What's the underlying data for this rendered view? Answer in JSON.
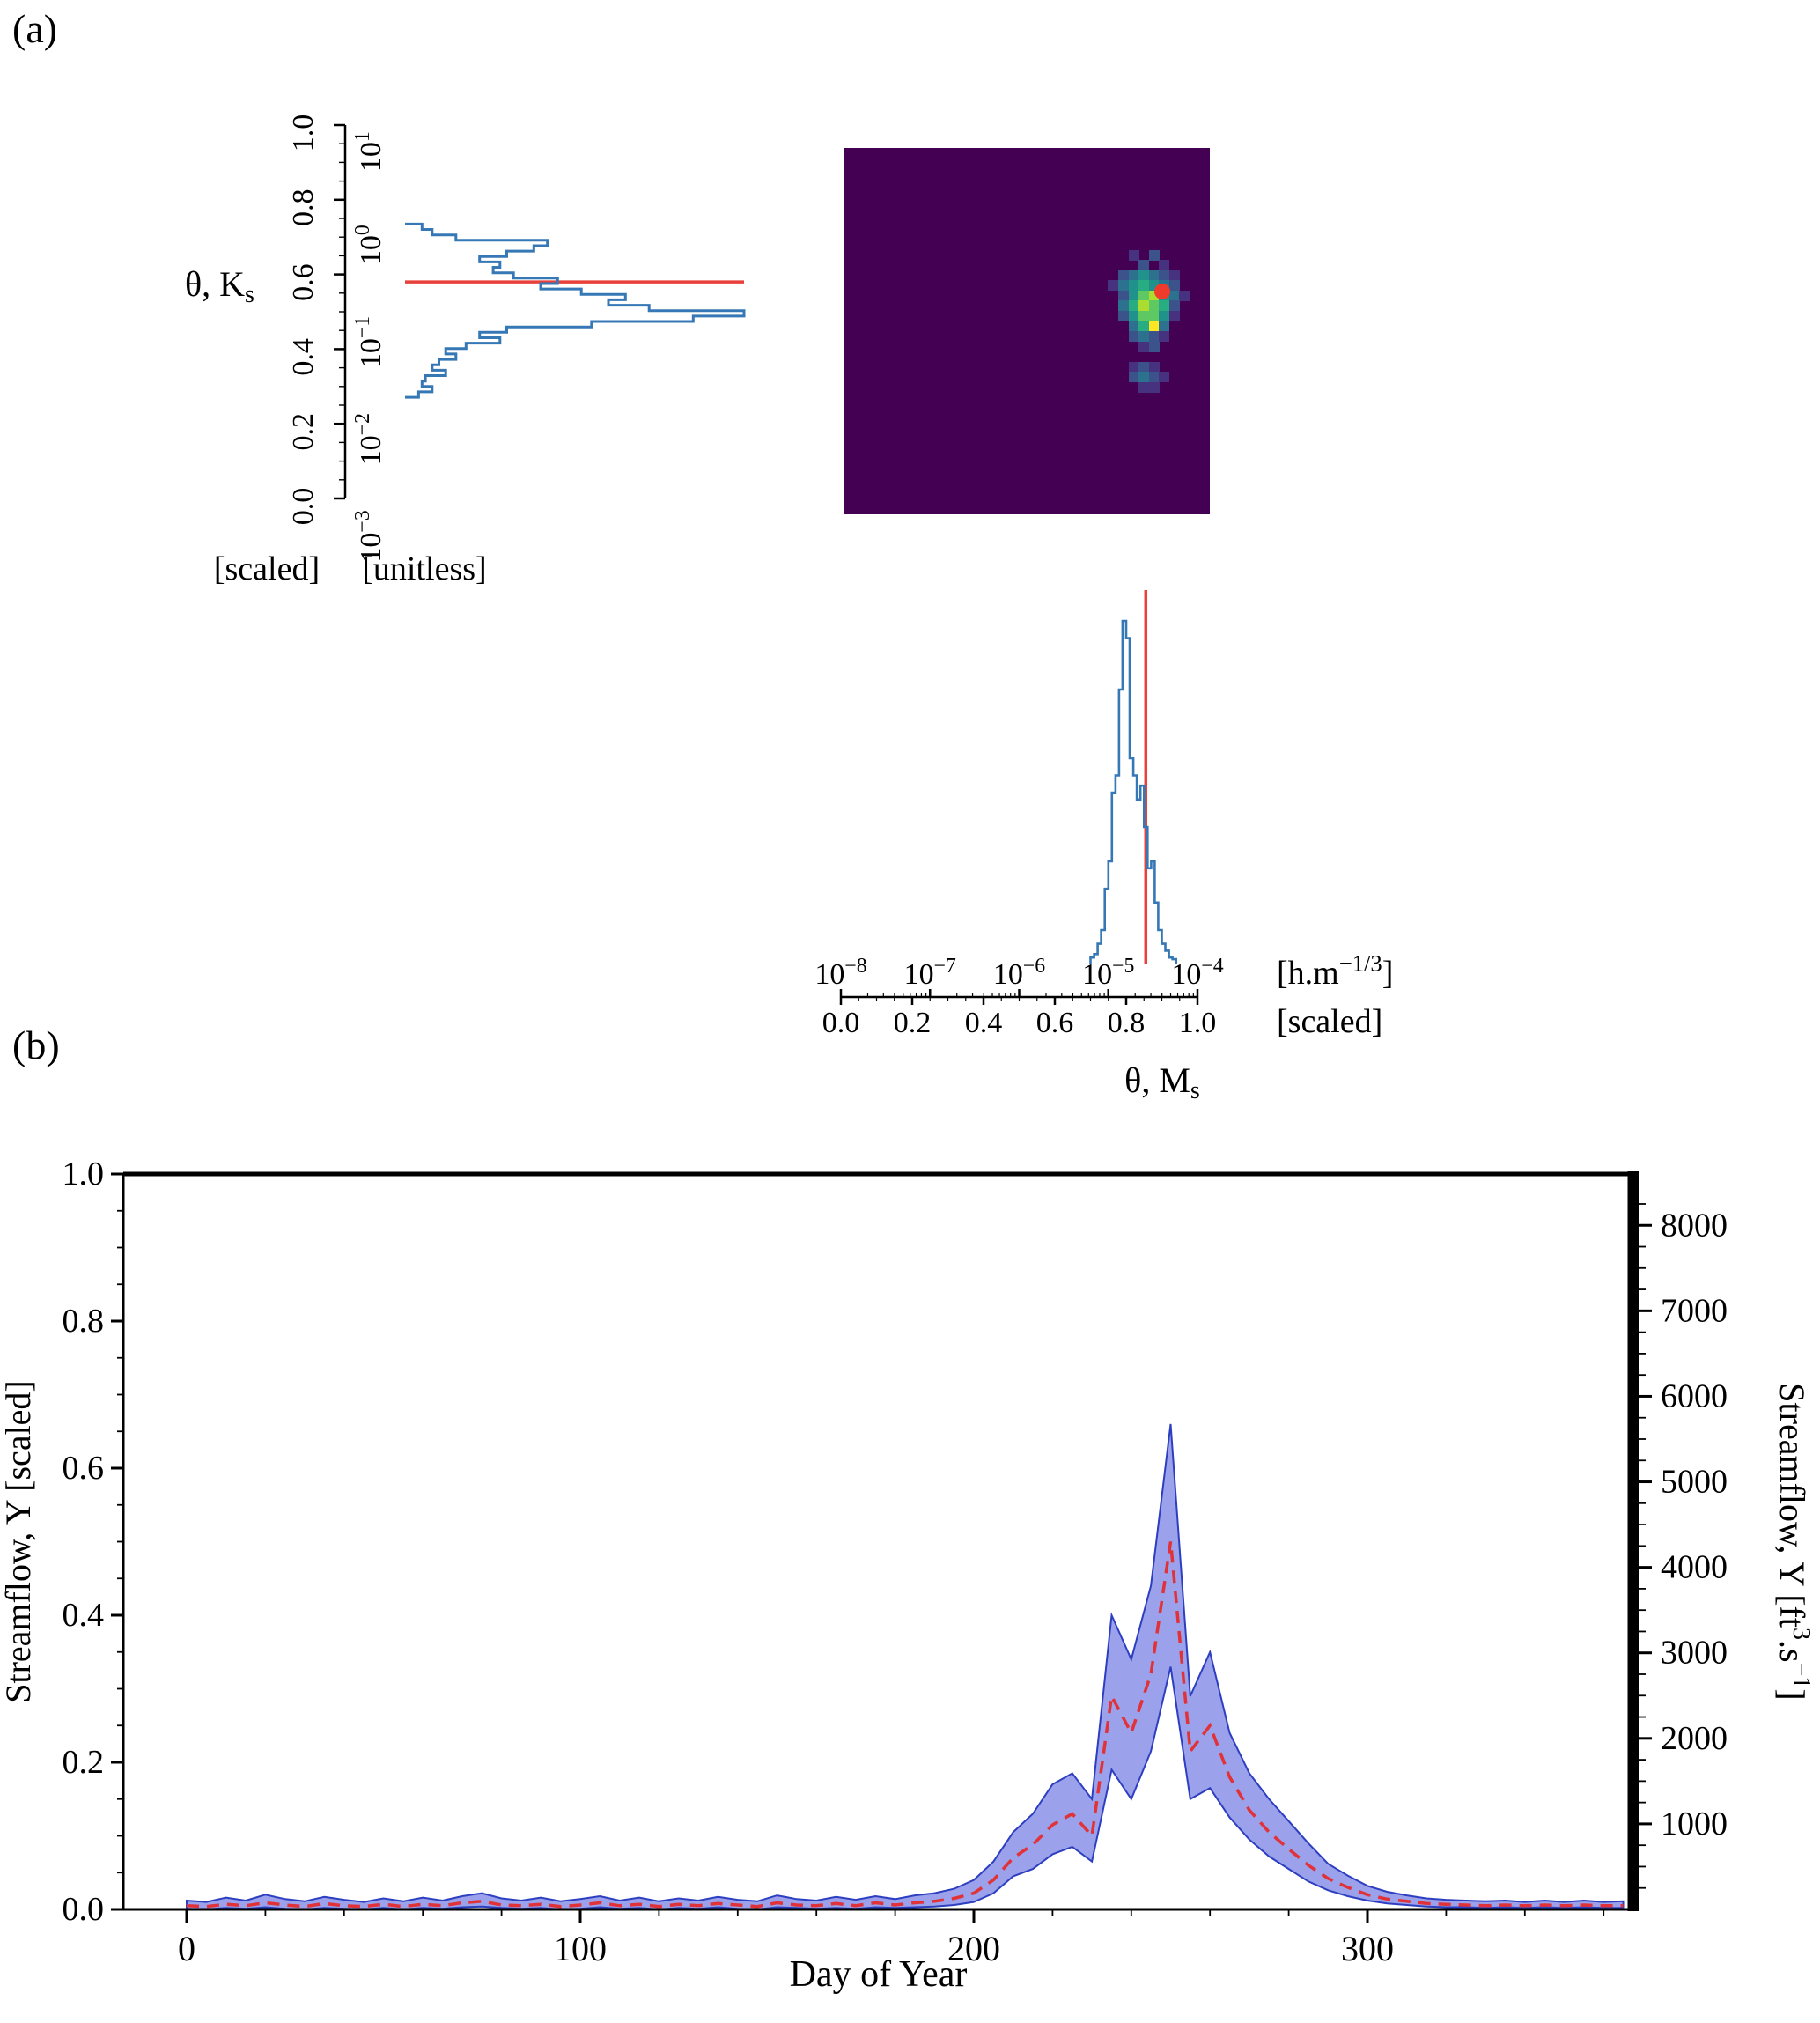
{
  "panels": {
    "a_label": "(a)",
    "b_label": "(b)"
  },
  "colors": {
    "hist_stroke": "#3578b5",
    "red_line": "#e8403a",
    "band_fill": "#8a90e6",
    "band_edge": "#2d3fc0",
    "median": "#e03238",
    "heatmap_bg": "#440154",
    "marker_red": "#ef3b2c",
    "axis_black": "#000000"
  },
  "chart_data": [
    {
      "id": "ks_marginal",
      "type": "bar",
      "orientation": "horizontal",
      "axis_label": "θ, K_{s}",
      "scaled_ticks": [
        "1.0",
        "0.8",
        "0.6",
        "0.4",
        "0.2",
        "0.0"
      ],
      "unitless_ticks": [
        "10^{1}",
        "10^{0}",
        "10^{−1}",
        "10^{−2}",
        "10^{−3}"
      ],
      "captions": [
        "[scaled]",
        "[unitless]"
      ],
      "bin_start": 0.735,
      "bin_step": 0.0145,
      "values": [
        0.05,
        0.08,
        0.15,
        0.42,
        0.38,
        0.3,
        0.22,
        0.28,
        0.26,
        0.32,
        0.45,
        0.4,
        0.52,
        0.65,
        0.6,
        0.72,
        1.0,
        0.85,
        0.55,
        0.3,
        0.22,
        0.28,
        0.18,
        0.12,
        0.15,
        0.1,
        0.08,
        0.12,
        0.06,
        0.05,
        0.08,
        0.04
      ],
      "red_line_value": 0.58,
      "axis_range_scaled": [
        0.0,
        1.0
      ]
    },
    {
      "id": "joint_heatmap",
      "type": "heatmap",
      "grid_size": 36,
      "background": "#440154",
      "palette": [
        "#46327e",
        "#3b528b",
        "#2c728e",
        "#21918c",
        "#27ad81",
        "#5ec962",
        "#addc30",
        "#fde725"
      ],
      "cells": [
        [
          28,
          10,
          0
        ],
        [
          30,
          10,
          1
        ],
        [
          29,
          11,
          1
        ],
        [
          31,
          11,
          0
        ],
        [
          27,
          12,
          1
        ],
        [
          28,
          12,
          2
        ],
        [
          29,
          12,
          3
        ],
        [
          30,
          12,
          2
        ],
        [
          31,
          12,
          1
        ],
        [
          32,
          12,
          0
        ],
        [
          26,
          13,
          0
        ],
        [
          27,
          13,
          2
        ],
        [
          28,
          13,
          3
        ],
        [
          29,
          13,
          4
        ],
        [
          30,
          13,
          3
        ],
        [
          31,
          13,
          2
        ],
        [
          32,
          13,
          1
        ],
        [
          27,
          14,
          1
        ],
        [
          28,
          14,
          3
        ],
        [
          29,
          14,
          5
        ],
        [
          30,
          14,
          6
        ],
        [
          31,
          14,
          3
        ],
        [
          32,
          14,
          2
        ],
        [
          33,
          14,
          0
        ],
        [
          27,
          15,
          2
        ],
        [
          28,
          15,
          4
        ],
        [
          29,
          15,
          6
        ],
        [
          30,
          15,
          5
        ],
        [
          31,
          15,
          4
        ],
        [
          32,
          15,
          1
        ],
        [
          27,
          16,
          1
        ],
        [
          28,
          16,
          3
        ],
        [
          29,
          16,
          5
        ],
        [
          30,
          16,
          5
        ],
        [
          31,
          16,
          3
        ],
        [
          32,
          16,
          0
        ],
        [
          28,
          17,
          2
        ],
        [
          29,
          17,
          4
        ],
        [
          30,
          17,
          7
        ],
        [
          31,
          17,
          2
        ],
        [
          28,
          18,
          1
        ],
        [
          29,
          18,
          2
        ],
        [
          30,
          18,
          1
        ],
        [
          31,
          18,
          0
        ],
        [
          29,
          19,
          0
        ],
        [
          30,
          19,
          1
        ],
        [
          28,
          21,
          0
        ],
        [
          29,
          21,
          1
        ],
        [
          30,
          21,
          0
        ],
        [
          28,
          22,
          1
        ],
        [
          29,
          22,
          2
        ],
        [
          30,
          22,
          1
        ],
        [
          31,
          22,
          0
        ],
        [
          29,
          23,
          0
        ],
        [
          30,
          23,
          0
        ]
      ],
      "true_value_marker": {
        "col": 30.8,
        "row": 13.6,
        "color": "#ef3b2c"
      }
    },
    {
      "id": "ms_marginal",
      "type": "bar",
      "orientation": "vertical",
      "axis_label": "θ, M_{s}",
      "log_ticks": [
        "10^{−8}",
        "10^{−7}",
        "10^{−6}",
        "10^{−5}",
        "10^{−4}"
      ],
      "scaled_ticks": [
        "0.0",
        "0.2",
        "0.4",
        "0.6",
        "0.8",
        "1.0"
      ],
      "unit_captions": [
        "[h.m^{−1/3}]",
        "[scaled]"
      ],
      "bin_start": 0.7,
      "bin_step": 0.01,
      "values": [
        0.02,
        0.03,
        0.06,
        0.1,
        0.22,
        0.3,
        0.5,
        0.55,
        0.8,
        1.0,
        0.95,
        0.6,
        0.55,
        0.48,
        0.52,
        0.4,
        0.28,
        0.3,
        0.18,
        0.1,
        0.06,
        0.04,
        0.02,
        0.015
      ],
      "red_line_value": 0.855,
      "axis_range_scaled": [
        0.0,
        1.0
      ]
    },
    {
      "id": "streamflow",
      "type": "area",
      "xlabel": "Day of Year",
      "ylabel_left": "Streamflow, Y [scaled]",
      "ylabel_right": "Streamflow, Y [ft^{3}.s^{−1}]",
      "xticks": [
        0,
        100,
        200,
        300
      ],
      "yticks_left": [
        "0.0",
        "0.2",
        "0.4",
        "0.6",
        "0.8",
        "1.0"
      ],
      "yticks_right": [
        1000,
        2000,
        3000,
        4000,
        5000,
        6000,
        7000,
        8000
      ],
      "ylim_left": [
        0.0,
        1.0
      ],
      "right_axis_max": 8600,
      "x": [
        0,
        5,
        10,
        15,
        20,
        25,
        30,
        35,
        40,
        45,
        50,
        55,
        60,
        65,
        70,
        75,
        80,
        85,
        90,
        95,
        100,
        105,
        110,
        115,
        120,
        125,
        130,
        135,
        140,
        145,
        150,
        155,
        160,
        165,
        170,
        175,
        180,
        185,
        190,
        195,
        200,
        205,
        210,
        215,
        220,
        225,
        230,
        235,
        240,
        245,
        250,
        255,
        260,
        265,
        270,
        275,
        280,
        285,
        290,
        295,
        300,
        305,
        310,
        315,
        320,
        325,
        330,
        335,
        340,
        345,
        350,
        355,
        360,
        365
      ],
      "band_upper": [
        0.012,
        0.01,
        0.016,
        0.012,
        0.02,
        0.014,
        0.011,
        0.017,
        0.013,
        0.01,
        0.015,
        0.011,
        0.016,
        0.012,
        0.018,
        0.022,
        0.015,
        0.012,
        0.016,
        0.011,
        0.014,
        0.018,
        0.012,
        0.016,
        0.011,
        0.015,
        0.012,
        0.017,
        0.013,
        0.011,
        0.019,
        0.014,
        0.012,
        0.017,
        0.013,
        0.018,
        0.014,
        0.019,
        0.022,
        0.028,
        0.04,
        0.065,
        0.105,
        0.13,
        0.17,
        0.185,
        0.15,
        0.4,
        0.34,
        0.44,
        0.66,
        0.29,
        0.35,
        0.24,
        0.185,
        0.15,
        0.12,
        0.09,
        0.062,
        0.046,
        0.032,
        0.024,
        0.019,
        0.015,
        0.013,
        0.012,
        0.011,
        0.012,
        0.01,
        0.012,
        0.01,
        0.012,
        0.01,
        0.011
      ],
      "band_lower": [
        0.001,
        0.0,
        0.002,
        0.001,
        0.003,
        0.001,
        0.0,
        0.002,
        0.001,
        0.0,
        0.002,
        0.0,
        0.002,
        0.001,
        0.003,
        0.004,
        0.002,
        0.001,
        0.002,
        0.0,
        0.001,
        0.003,
        0.001,
        0.002,
        0.0,
        0.002,
        0.001,
        0.003,
        0.001,
        0.0,
        0.003,
        0.002,
        0.001,
        0.002,
        0.001,
        0.003,
        0.002,
        0.003,
        0.004,
        0.006,
        0.01,
        0.022,
        0.045,
        0.055,
        0.075,
        0.085,
        0.065,
        0.19,
        0.15,
        0.215,
        0.33,
        0.15,
        0.165,
        0.125,
        0.095,
        0.072,
        0.055,
        0.038,
        0.026,
        0.018,
        0.012,
        0.008,
        0.006,
        0.004,
        0.003,
        0.003,
        0.002,
        0.003,
        0.002,
        0.003,
        0.002,
        0.003,
        0.002,
        0.002
      ],
      "median": [
        0.005,
        0.004,
        0.007,
        0.005,
        0.009,
        0.006,
        0.004,
        0.008,
        0.005,
        0.004,
        0.007,
        0.004,
        0.007,
        0.005,
        0.009,
        0.011,
        0.006,
        0.005,
        0.007,
        0.004,
        0.006,
        0.009,
        0.005,
        0.007,
        0.004,
        0.007,
        0.005,
        0.008,
        0.006,
        0.004,
        0.009,
        0.006,
        0.005,
        0.008,
        0.005,
        0.009,
        0.006,
        0.009,
        0.011,
        0.015,
        0.022,
        0.04,
        0.07,
        0.088,
        0.115,
        0.13,
        0.1,
        0.29,
        0.24,
        0.32,
        0.5,
        0.215,
        0.25,
        0.18,
        0.135,
        0.105,
        0.082,
        0.06,
        0.042,
        0.03,
        0.02,
        0.014,
        0.011,
        0.008,
        0.007,
        0.006,
        0.005,
        0.006,
        0.005,
        0.006,
        0.005,
        0.006,
        0.005,
        0.005
      ]
    }
  ]
}
